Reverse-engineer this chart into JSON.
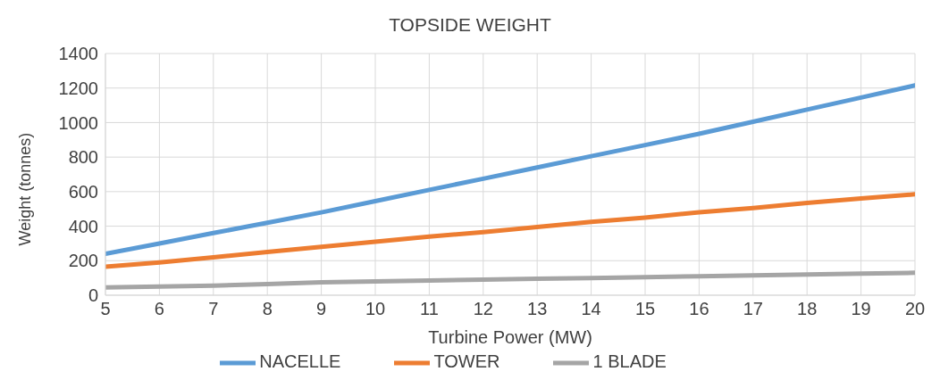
{
  "chart_data": {
    "type": "line",
    "title": "TOPSIDE WEIGHT",
    "xlabel": "Turbine Power (MW)",
    "ylabel": "Weight (tonnes)",
    "categories": [
      "5",
      "6",
      "7",
      "8",
      "9",
      "10",
      "11",
      "12",
      "13",
      "14",
      "15",
      "16",
      "17",
      "18",
      "19",
      "20"
    ],
    "series": [
      {
        "name": "NACELLE",
        "color": "#5b9bd5",
        "values": [
          240,
          300,
          360,
          420,
          480,
          545,
          610,
          675,
          740,
          805,
          870,
          935,
          1005,
          1075,
          1145,
          1215
        ]
      },
      {
        "name": "TOWER",
        "color": "#ed7d31",
        "values": [
          165,
          190,
          220,
          250,
          280,
          310,
          340,
          365,
          395,
          425,
          450,
          480,
          505,
          535,
          560,
          585
        ]
      },
      {
        "name": "1 BLADE",
        "color": "#a5a5a5",
        "values": [
          45,
          50,
          55,
          65,
          75,
          80,
          85,
          90,
          95,
          100,
          105,
          110,
          115,
          120,
          125,
          130
        ]
      }
    ],
    "ylim": [
      0,
      1400
    ],
    "yticks": [
      0,
      200,
      400,
      600,
      800,
      1000,
      1200,
      1400
    ],
    "grid": true,
    "legend": "bottom",
    "marker": "none",
    "line_style": "solid"
  }
}
